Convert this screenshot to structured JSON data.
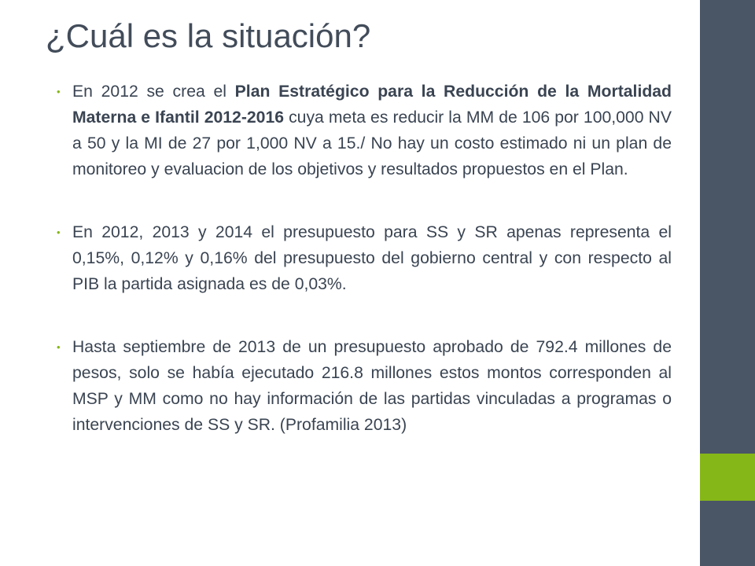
{
  "slide": {
    "title": "¿Cuál es la situación?",
    "colors": {
      "sidebar": "#4a5566",
      "accent": "#86b718",
      "text": "#3a4452"
    },
    "bullets": [
      {
        "pre": "En 2012 se crea el ",
        "bold": "Plan Estratégico para la Reducción de la Mortalidad Materna e Ifantil 2012-2016",
        "post": " cuya meta es reducir la MM de 106 por 100,000 NV a 50 y la MI de 27 por 1,000 NV a 15./ No hay un costo estimado ni un plan de monitoreo y evaluacion de los objetivos y resultados propuestos en el Plan."
      },
      {
        "text": "En 2012, 2013 y 2014 el presupuesto para SS y SR apenas representa el 0,15%, 0,12% y 0,16% del presupuesto del gobierno central y con respecto al PIB la partida asignada es de 0,03%."
      },
      {
        "text": "Hasta septiembre de 2013 de un presupuesto aprobado de 792.4 millones de pesos, solo se había ejecutado 216.8 millones estos montos corresponden al MSP y MM como no hay información de las partidas vinculadas a programas o intervenciones de SS y SR.  (Profamilia 2013)"
      }
    ]
  }
}
